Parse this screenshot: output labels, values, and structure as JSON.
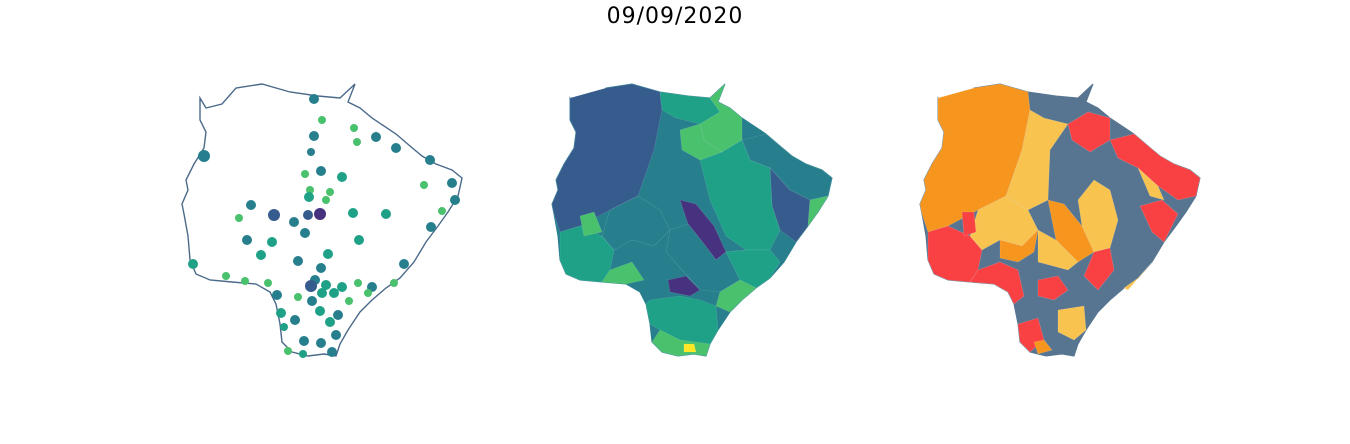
{
  "figure": {
    "date_title": "09/09/2020"
  },
  "colors": {
    "outline": "#4b6a8a",
    "viridis_dark": "#46327e",
    "viridis_blue": "#365c8d",
    "viridis_teal": "#277f8e",
    "viridis_green": "#1fa187",
    "viridis_lgreen": "#4ac16d",
    "viridis_lime": "#a0da39",
    "viridis_yellow": "#fde725",
    "cat_orange": "#f7961e",
    "cat_yellow": "#f9c350",
    "cat_red": "#f94144",
    "cat_slate": "#577590"
  },
  "panels": [
    {
      "name": "points-map",
      "description_type": "scatter markers over state outline"
    },
    {
      "name": "choropleth-map",
      "description_type": "continuous color by municipality"
    },
    {
      "name": "category-map",
      "description_type": "categorical color by municipality"
    }
  ]
}
